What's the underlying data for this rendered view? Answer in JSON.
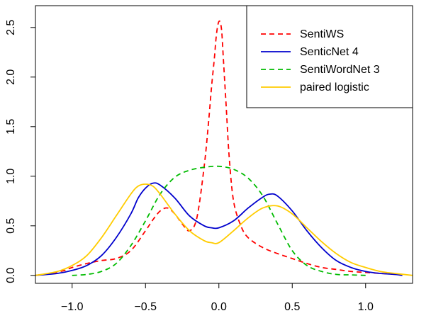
{
  "chart_data": {
    "type": "line",
    "title": "",
    "xlabel": "",
    "ylabel": "",
    "xlim": [
      -1.25,
      1.32
    ],
    "ylim": [
      -0.08,
      2.72
    ],
    "x_ticks": [
      -1.0,
      -0.5,
      0.0,
      0.5,
      1.0
    ],
    "x_tick_labels": [
      "−1.0",
      "−0.5",
      "0.0",
      "0.5",
      "1.0"
    ],
    "y_ticks": [
      0.0,
      0.5,
      1.0,
      1.5,
      2.0,
      2.5
    ],
    "y_tick_labels": [
      "0.0",
      "0.5",
      "1.0",
      "1.5",
      "2.0",
      "2.5"
    ],
    "grid": false,
    "legend_position": "top-right",
    "series": [
      {
        "name": "SentiWS",
        "color": "#ff0000",
        "dash": "dashed",
        "x": [
          -1.25,
          -1.15,
          -1.05,
          -1.0,
          -0.9,
          -0.8,
          -0.7,
          -0.6,
          -0.5,
          -0.45,
          -0.4,
          -0.35,
          -0.3,
          -0.25,
          -0.2,
          -0.15,
          -0.1,
          -0.07,
          -0.05,
          -0.03,
          -0.02,
          -0.01,
          0.0,
          0.01,
          0.02,
          0.03,
          0.05,
          0.07,
          0.1,
          0.15,
          0.2,
          0.3,
          0.4,
          0.5,
          0.6,
          0.7,
          0.8,
          0.9,
          1.0,
          1.1,
          1.2,
          1.25
        ],
        "y": [
          0.0,
          0.02,
          0.05,
          0.08,
          0.12,
          0.15,
          0.17,
          0.25,
          0.45,
          0.56,
          0.65,
          0.68,
          0.62,
          0.52,
          0.45,
          0.58,
          1.1,
          1.55,
          1.9,
          2.2,
          2.38,
          2.5,
          2.56,
          2.55,
          2.45,
          2.2,
          1.7,
          1.2,
          0.75,
          0.5,
          0.38,
          0.28,
          0.22,
          0.17,
          0.12,
          0.08,
          0.06,
          0.04,
          0.03,
          0.02,
          0.01,
          0.0
        ]
      },
      {
        "name": "SenticNet 4",
        "color": "#0000cd",
        "dash": "solid",
        "x": [
          -1.25,
          -1.1,
          -1.0,
          -0.9,
          -0.8,
          -0.7,
          -0.6,
          -0.55,
          -0.5,
          -0.45,
          -0.4,
          -0.3,
          -0.2,
          -0.1,
          -0.05,
          0.0,
          0.1,
          0.2,
          0.3,
          0.35,
          0.4,
          0.5,
          0.6,
          0.7,
          0.8,
          0.9,
          1.0,
          1.1,
          1.2,
          1.25
        ],
        "y": [
          0.0,
          0.02,
          0.05,
          0.1,
          0.2,
          0.38,
          0.62,
          0.78,
          0.88,
          0.93,
          0.91,
          0.78,
          0.6,
          0.5,
          0.48,
          0.48,
          0.55,
          0.68,
          0.79,
          0.82,
          0.8,
          0.65,
          0.45,
          0.28,
          0.15,
          0.08,
          0.04,
          0.02,
          0.01,
          0.0
        ]
      },
      {
        "name": "SentiWordNet 3",
        "color": "#00bb00",
        "dash": "dashed",
        "x": [
          -1.0,
          -0.9,
          -0.8,
          -0.7,
          -0.6,
          -0.5,
          -0.4,
          -0.3,
          -0.2,
          -0.1,
          0.0,
          0.1,
          0.2,
          0.3,
          0.4,
          0.5,
          0.6,
          0.7,
          0.8,
          0.9,
          1.0
        ],
        "y": [
          0.0,
          0.01,
          0.04,
          0.12,
          0.3,
          0.55,
          0.82,
          0.99,
          1.06,
          1.09,
          1.1,
          1.07,
          0.98,
          0.8,
          0.52,
          0.25,
          0.1,
          0.04,
          0.01,
          0.005,
          0.0
        ]
      },
      {
        "name": "paired logistic",
        "color": "#ffcc00",
        "dash": "solid",
        "x": [
          -1.25,
          -1.1,
          -1.0,
          -0.9,
          -0.8,
          -0.7,
          -0.6,
          -0.55,
          -0.5,
          -0.45,
          -0.4,
          -0.3,
          -0.2,
          -0.1,
          -0.05,
          0.0,
          0.1,
          0.2,
          0.3,
          0.4,
          0.5,
          0.6,
          0.7,
          0.8,
          0.9,
          1.0,
          1.1,
          1.2,
          1.32
        ],
        "y": [
          0.0,
          0.04,
          0.1,
          0.2,
          0.38,
          0.6,
          0.82,
          0.9,
          0.92,
          0.9,
          0.82,
          0.62,
          0.45,
          0.35,
          0.33,
          0.33,
          0.45,
          0.58,
          0.68,
          0.7,
          0.62,
          0.48,
          0.34,
          0.22,
          0.13,
          0.08,
          0.04,
          0.02,
          0.0
        ]
      }
    ]
  }
}
